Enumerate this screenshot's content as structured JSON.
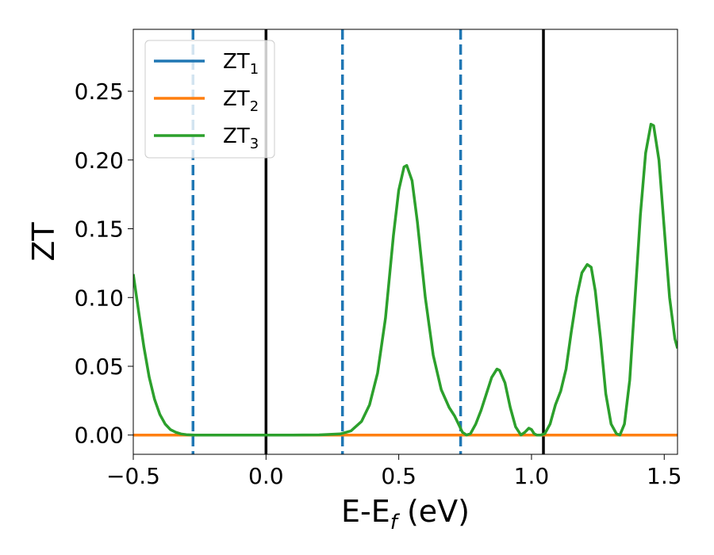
{
  "chart_data": {
    "type": "line",
    "title": "",
    "xlabel": {
      "main": "E-E",
      "sub": "f",
      "suffix": " (eV)"
    },
    "ylabel": "ZT",
    "xlim": [
      -0.5,
      1.55
    ],
    "ylim": [
      -0.014,
      0.295
    ],
    "x_ticks": [
      -0.5,
      0.0,
      0.5,
      1.0,
      1.5
    ],
    "x_tick_labels": [
      "−0.5",
      "0.0",
      "0.5",
      "1.0",
      "1.5"
    ],
    "y_ticks": [
      0.0,
      0.05,
      0.1,
      0.15,
      0.2,
      0.25
    ],
    "y_tick_labels": [
      "0.00",
      "0.05",
      "0.10",
      "0.15",
      "0.20",
      "0.25"
    ],
    "grid": false,
    "legend_position": "top-left",
    "series": [
      {
        "name": "ZT",
        "sub": "1",
        "color": "#1f77b4",
        "x": [
          -0.5,
          1.55
        ],
        "y": [
          0.0,
          0.0
        ]
      },
      {
        "name": "ZT",
        "sub": "2",
        "color": "#ff7f0e",
        "x": [
          -0.5,
          1.55
        ],
        "y": [
          0.0,
          0.0
        ]
      },
      {
        "name": "ZT",
        "sub": "3",
        "color": "#2ca02c",
        "x": [
          -0.5,
          -0.48,
          -0.46,
          -0.44,
          -0.42,
          -0.4,
          -0.38,
          -0.36,
          -0.34,
          -0.32,
          -0.3,
          -0.27,
          -0.22,
          -0.1,
          0.0,
          0.1,
          0.2,
          0.28,
          0.32,
          0.36,
          0.39,
          0.42,
          0.45,
          0.48,
          0.5,
          0.52,
          0.53,
          0.55,
          0.57,
          0.6,
          0.63,
          0.66,
          0.69,
          0.71,
          0.73,
          0.74,
          0.755,
          0.77,
          0.79,
          0.81,
          0.83,
          0.85,
          0.87,
          0.88,
          0.9,
          0.92,
          0.94,
          0.96,
          0.975,
          0.99,
          1.0,
          1.01,
          1.02,
          1.035,
          1.05,
          1.07,
          1.09,
          1.11,
          1.13,
          1.15,
          1.17,
          1.19,
          1.21,
          1.225,
          1.24,
          1.26,
          1.28,
          1.3,
          1.32,
          1.333,
          1.35,
          1.37,
          1.39,
          1.41,
          1.43,
          1.45,
          1.46,
          1.48,
          1.5,
          1.52,
          1.54,
          1.55
        ],
        "y": [
          0.117,
          0.09,
          0.064,
          0.042,
          0.026,
          0.015,
          0.008,
          0.004,
          0.002,
          0.0008,
          0.0003,
          0.0,
          0.0,
          0.0,
          0.0,
          0.0,
          0.0001,
          0.0008,
          0.003,
          0.01,
          0.022,
          0.045,
          0.085,
          0.145,
          0.178,
          0.195,
          0.196,
          0.185,
          0.155,
          0.1,
          0.058,
          0.033,
          0.02,
          0.014,
          0.006,
          0.002,
          0.0,
          0.001,
          0.008,
          0.018,
          0.03,
          0.042,
          0.048,
          0.047,
          0.038,
          0.02,
          0.006,
          0.0,
          0.002,
          0.005,
          0.004,
          0.001,
          0.0,
          0.0,
          0.001,
          0.008,
          0.022,
          0.032,
          0.048,
          0.075,
          0.1,
          0.118,
          0.124,
          0.122,
          0.105,
          0.07,
          0.03,
          0.008,
          0.001,
          0.0,
          0.008,
          0.04,
          0.1,
          0.16,
          0.205,
          0.226,
          0.225,
          0.2,
          0.15,
          0.1,
          0.07,
          0.063
        ]
      }
    ],
    "vlines": [
      {
        "x": -0.275,
        "style": "dashed",
        "color": "#1f77b4"
      },
      {
        "x": 0.0,
        "style": "solid",
        "color": "#000000"
      },
      {
        "x": 0.288,
        "style": "dashed",
        "color": "#1f77b4"
      },
      {
        "x": 0.733,
        "style": "dashed",
        "color": "#1f77b4"
      },
      {
        "x": 1.045,
        "style": "solid",
        "color": "#000000"
      }
    ]
  }
}
